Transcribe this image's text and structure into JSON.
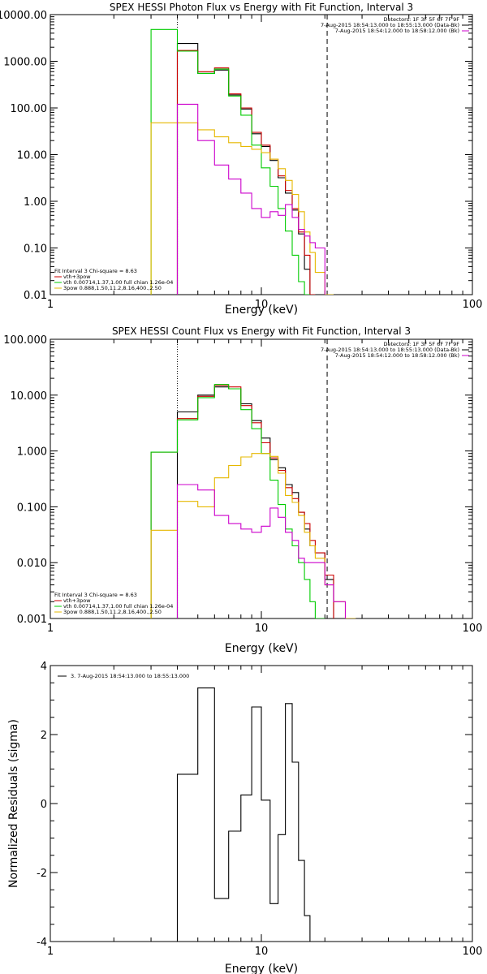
{
  "colors": {
    "data": "#000000",
    "total": "#cc0000",
    "vth": "#00cc00",
    "bpow": "#e6b800",
    "bkg": "#cc00cc"
  },
  "chart_data": [
    {
      "type": "line",
      "title": "SPEX HESSI Photon Flux vs Energy with Fit Function, Interval 3",
      "xlabel": "Energy (keV)",
      "ylabel": "",
      "xscale": "log",
      "yscale": "log",
      "xlim": [
        1,
        100
      ],
      "ylim": [
        0.01,
        10000
      ],
      "x_ticks": [
        "1",
        "10",
        "100"
      ],
      "y_ticks": [
        "0.01",
        "0.10",
        "1.00",
        "10.00",
        "100.00",
        "1000.00",
        "10000.00"
      ],
      "header": [
        "Detectors: 1F 3F 5F 6F 7F 9F",
        "7-Aug-2015 18:54:13.000 to 18:55:13.000 (Data-Bk)",
        "7-Aug-2015 18:54:12.000 to 18:58:12.000 (Bk)"
      ],
      "legend": [
        "Fit Interval 3   Chi-square = 8.63",
        "vth+3pow",
        "vth 0.00714,1.37,1.00  full chian 1.26e-04",
        "3pow 0.888,1.50,11.2,8.16,400.,2.50"
      ],
      "edges": [
        3.0,
        4.0,
        5.0,
        6.0,
        7.0,
        8.0,
        9.0,
        10.0,
        11.0,
        12.0,
        13.0,
        14.0,
        15.0,
        16.0,
        17.0,
        18.0,
        20.0,
        22.0,
        25.0
      ],
      "series": [
        {
          "name": "Data-Bk",
          "values": [
            null,
            2400,
            550,
            650,
            190,
            95,
            28,
            15,
            7.5,
            3.2,
            1.5,
            0.65,
            0.2,
            0.035,
            0.01,
            null,
            null,
            null
          ]
        },
        {
          "name": "vth+3pow",
          "values": [
            null,
            1700,
            600,
            720,
            200,
            100,
            30,
            16,
            8,
            3.5,
            1.7,
            0.7,
            0.22,
            0.07,
            0.01,
            null,
            null,
            null
          ]
        },
        {
          "name": "vth",
          "values": [
            4800,
            1650,
            550,
            680,
            180,
            70,
            16,
            5.2,
            2.1,
            0.7,
            0.23,
            0.07,
            0.019,
            0.01,
            null,
            null,
            null,
            null
          ]
        },
        {
          "name": "3pow",
          "values": [
            48,
            48,
            34,
            24,
            18,
            15,
            13,
            11,
            8,
            5,
            2.8,
            1.4,
            0.6,
            0.22,
            0.08,
            0.03,
            0.01,
            null
          ]
        },
        {
          "name": "Bk",
          "values": [
            null,
            120,
            20,
            6,
            3,
            1.5,
            0.7,
            0.45,
            0.6,
            0.5,
            0.85,
            0.45,
            0.25,
            0.18,
            0.13,
            0.1,
            null,
            null
          ]
        }
      ],
      "vlines": [
        {
          "x": 4.0,
          "style": "dotted"
        },
        {
          "x": 20.5,
          "style": "dashed"
        }
      ]
    },
    {
      "type": "line",
      "title": "SPEX HESSI Count Flux vs Energy with Fit Function, Interval 3",
      "xlabel": "Energy (keV)",
      "ylabel": "",
      "xscale": "log",
      "yscale": "log",
      "xlim": [
        1,
        100
      ],
      "ylim": [
        0.001,
        100
      ],
      "x_ticks": [
        "1",
        "10",
        "100"
      ],
      "y_ticks": [
        "0.001",
        "0.010",
        "0.100",
        "1.000",
        "10.000",
        "100.000"
      ],
      "header": [
        "Detectors: 1F 3F 5F 6F 7F 9F",
        "7-Aug-2015 18:54:13.000 to 18:55:13.000 (Data-Bk)",
        "7-Aug-2015 18:54:12.000 to 18:58:12.000 (Bk)"
      ],
      "legend": [
        "Fit Interval 3   Chi-square = 8.63",
        "vth+3pow",
        "vth 0.00714,1.37,1.00  full chian 1.26e-04",
        "3pow 0.888,1.50,11.2,8.16,400.,2.50"
      ],
      "edges": [
        3.0,
        4.0,
        5.0,
        6.0,
        7.0,
        8.0,
        9.0,
        10.0,
        11.0,
        12.0,
        13.0,
        14.0,
        15.0,
        16.0,
        17.0,
        18.0,
        20.0,
        22.0,
        25.0,
        28.0
      ],
      "series": [
        {
          "name": "Data-Bk",
          "values": [
            null,
            5,
            10,
            14,
            13,
            7,
            3.5,
            1.7,
            0.7,
            0.5,
            0.25,
            0.18,
            0.08,
            0.04,
            0.02,
            0.015,
            0.005,
            null,
            null
          ]
        },
        {
          "name": "vth+3pow",
          "values": [
            0.95,
            3.8,
            9.5,
            15,
            14,
            6.5,
            3.2,
            1.4,
            0.75,
            0.45,
            0.22,
            0.14,
            0.08,
            0.05,
            0.025,
            0.015,
            0.006,
            null,
            null
          ]
        },
        {
          "name": "vth",
          "values": [
            0.95,
            3.6,
            9,
            15.5,
            13,
            5.5,
            2.5,
            0.9,
            0.3,
            0.11,
            0.04,
            0.02,
            0.01,
            0.005,
            0.002,
            0.001,
            null,
            null,
            null
          ]
        },
        {
          "name": "3pow",
          "values": [
            0.038,
            0.125,
            0.1,
            0.33,
            0.55,
            0.78,
            0.9,
            0.9,
            0.8,
            0.4,
            0.16,
            0.12,
            0.07,
            0.035,
            0.02,
            0.012,
            0.004,
            0.002,
            0.001
          ]
        },
        {
          "name": "Bk",
          "values": [
            null,
            0.25,
            0.2,
            0.07,
            0.05,
            0.04,
            0.035,
            0.045,
            0.095,
            0.065,
            0.035,
            0.025,
            0.012,
            0.01,
            0.01,
            0.01,
            0.004,
            0.002,
            null
          ]
        }
      ],
      "vlines": [
        {
          "x": 4.0,
          "style": "dotted"
        },
        {
          "x": 20.5,
          "style": "dashed"
        }
      ]
    },
    {
      "type": "line",
      "title": "",
      "xlabel": "Energy (keV)",
      "ylabel": "Normalized Residuals (sigma)",
      "xscale": "log",
      "yscale": "linear",
      "xlim": [
        1,
        100
      ],
      "ylim": [
        -4,
        4
      ],
      "x_ticks": [
        "1",
        "10",
        "100"
      ],
      "y_ticks": [
        "-4",
        "-2",
        "0",
        "2",
        "4"
      ],
      "legend": [
        "3.  7-Aug-2015 18:54:13.000 to 18:55:13.000"
      ],
      "edges": [
        4.0,
        5.0,
        6.0,
        7.0,
        8.0,
        9.0,
        10.0,
        11.0,
        12.0,
        13.0,
        14.0,
        15.0,
        16.0,
        17.0,
        18.0,
        20.0
      ],
      "series": [
        {
          "name": "residuals",
          "values": [
            0.85,
            3.35,
            -2.75,
            -0.8,
            0.25,
            2.8,
            0.1,
            -2.9,
            -0.9,
            2.9,
            1.2,
            -1.65,
            -3.25,
            -4.0,
            -4.0
          ]
        }
      ]
    }
  ]
}
